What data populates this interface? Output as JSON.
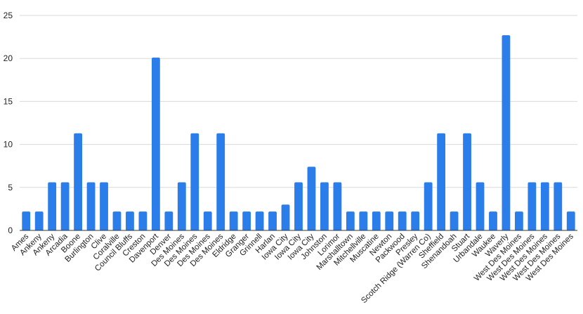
{
  "chart_data": {
    "type": "bar",
    "title": "",
    "xlabel": "",
    "ylabel": "",
    "ylim": [
      0,
      25
    ],
    "yticks": [
      0,
      5,
      10,
      15,
      20,
      25
    ],
    "grid": true,
    "legend": "none",
    "bar_color": "#2b7de9",
    "categories": [
      "Ames",
      "Ankeny",
      "Ankeny",
      "Arcadia",
      "Boone",
      "Burlington",
      "Clive",
      "Coralville",
      "Council Bluffs",
      "Creston",
      "Davenport",
      "Denver",
      "Des Moines",
      "Des Moines",
      "Des Moines",
      "Des Moines",
      "Eldridge",
      "Granger",
      "Grinnell",
      "Harlan",
      "Iowa City",
      "Iowa City",
      "Iowa City",
      "Johnston",
      "Lorimor",
      "Marshalltown",
      "Mitchellville",
      "Muscatine",
      "Newton",
      "Packwood",
      "Presley",
      "Scotch Ridge (Warren Co)",
      "Sheffield",
      "Shenandoah",
      "Stuart",
      "Urbandale",
      "Waukee",
      "Waverly",
      "West Des Moines",
      "West Des Moines",
      "West Des Moines",
      "West Des Moines",
      "West Des Moines"
    ],
    "values": [
      2.2,
      2.2,
      5.6,
      5.6,
      11.3,
      5.6,
      5.6,
      2.2,
      2.2,
      2.2,
      20.1,
      2.2,
      5.6,
      11.3,
      2.2,
      11.3,
      2.2,
      2.2,
      2.2,
      2.2,
      3.0,
      5.6,
      7.4,
      5.6,
      5.6,
      2.2,
      2.2,
      2.2,
      2.2,
      2.2,
      2.2,
      5.6,
      11.3,
      2.2,
      11.3,
      5.6,
      2.2,
      22.7,
      2.2,
      5.6,
      5.6,
      5.6,
      2.2
    ]
  }
}
